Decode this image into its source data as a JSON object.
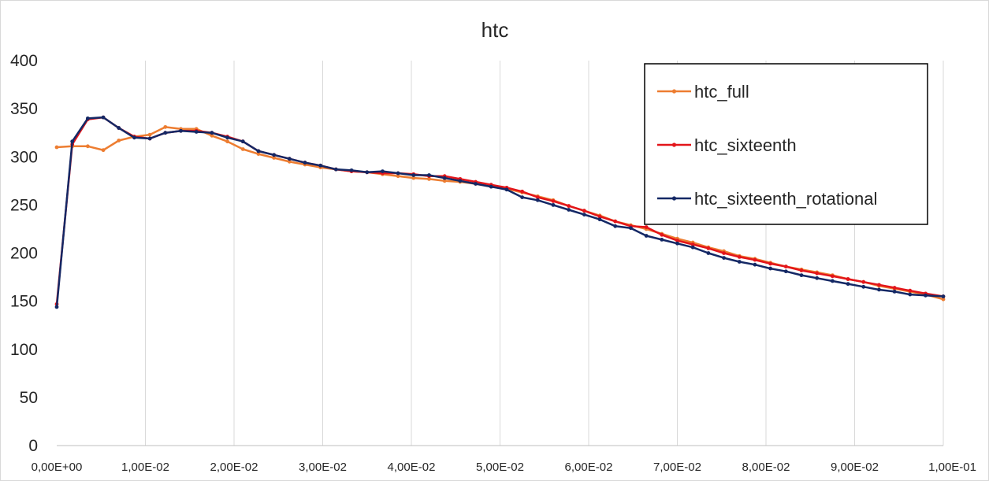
{
  "chart_data": {
    "type": "line",
    "title": "htc",
    "xlabel": "",
    "ylabel": "",
    "xlim": [
      0,
      0.1
    ],
    "ylim": [
      0,
      400
    ],
    "grid": "vertical",
    "legend_position": "top-right",
    "x_ticks": [
      0,
      0.01,
      0.02,
      0.03,
      0.04,
      0.05,
      0.06,
      0.07,
      0.08,
      0.09,
      0.1
    ],
    "x_tick_labels": [
      "0,00E+00",
      "1,00E-02",
      "2,00E-02",
      "3,00E-02",
      "4,00E-02",
      "5,00E-02",
      "6,00E-02",
      "7,00E-02",
      "8,00E-02",
      "9,00E-02",
      "1,00E-01"
    ],
    "y_ticks": [
      0,
      50,
      100,
      150,
      200,
      250,
      300,
      350,
      400
    ],
    "y_tick_labels": [
      "0",
      "50",
      "100",
      "150",
      "200",
      "250",
      "300",
      "350",
      "400"
    ],
    "series": [
      {
        "name": "htc_full",
        "color": "#ed7d31",
        "x": [
          0,
          0.00175,
          0.0035,
          0.00525,
          0.007,
          0.00875,
          0.0105,
          0.01225,
          0.014,
          0.01575,
          0.0175,
          0.01925,
          0.021,
          0.02275,
          0.0245,
          0.02625,
          0.028,
          0.02975,
          0.0315,
          0.03325,
          0.035,
          0.03675,
          0.0385,
          0.04025,
          0.042,
          0.04375,
          0.0455,
          0.04725,
          0.049,
          0.05075,
          0.0525,
          0.05425,
          0.056,
          0.05775,
          0.0595,
          0.06125,
          0.063,
          0.06475,
          0.0665,
          0.06825,
          0.07,
          0.07175,
          0.0735,
          0.07525,
          0.077,
          0.07875,
          0.0805,
          0.08225,
          0.084,
          0.08575,
          0.0875,
          0.08925,
          0.091,
          0.09275,
          0.0945,
          0.09625,
          0.098,
          0.1
        ],
        "y": [
          310,
          311,
          311,
          307,
          317,
          321,
          323,
          331,
          329,
          329,
          322,
          316,
          308,
          303,
          299,
          295,
          292,
          289,
          287,
          285,
          284,
          282,
          280,
          278,
          277,
          275,
          274,
          272,
          269,
          267,
          263,
          259,
          255,
          249,
          244,
          239,
          233,
          229,
          225,
          220,
          215,
          211,
          206,
          202,
          197,
          194,
          190,
          186,
          183,
          180,
          177,
          173,
          170,
          166,
          163,
          160,
          157,
          152
        ]
      },
      {
        "name": "htc_sixteenth",
        "color": "#e3151a",
        "x": [
          0,
          0.00175,
          0.0035,
          0.00525,
          0.007,
          0.00875,
          0.0105,
          0.01225,
          0.014,
          0.01575,
          0.0175,
          0.01925,
          0.021,
          0.02275,
          0.0245,
          0.02625,
          0.028,
          0.02975,
          0.0315,
          0.03325,
          0.035,
          0.03675,
          0.0385,
          0.04025,
          0.042,
          0.04375,
          0.0455,
          0.04725,
          0.049,
          0.05075,
          0.0525,
          0.05425,
          0.056,
          0.05775,
          0.0595,
          0.06125,
          0.063,
          0.06475,
          0.0665,
          0.06825,
          0.07,
          0.07175,
          0.0735,
          0.07525,
          0.077,
          0.07875,
          0.0805,
          0.08225,
          0.084,
          0.08575,
          0.0875,
          0.08925,
          0.091,
          0.09275,
          0.0945,
          0.09625,
          0.098,
          0.1
        ],
        "y": [
          147,
          313,
          339,
          341,
          330,
          321,
          319,
          325,
          327,
          327,
          325,
          321,
          316,
          306,
          302,
          298,
          294,
          291,
          287,
          285,
          284,
          283,
          283,
          282,
          280,
          280,
          277,
          274,
          271,
          268,
          264,
          258,
          254,
          249,
          244,
          238,
          233,
          228,
          227,
          219,
          213,
          209,
          205,
          200,
          196,
          193,
          189,
          186,
          182,
          179,
          176,
          173,
          170,
          167,
          164,
          161,
          158,
          155
        ]
      },
      {
        "name": "htc_sixteenth_rotational",
        "color": "#142865",
        "x": [
          0,
          0.00175,
          0.0035,
          0.00525,
          0.007,
          0.00875,
          0.0105,
          0.01225,
          0.014,
          0.01575,
          0.0175,
          0.01925,
          0.021,
          0.02275,
          0.0245,
          0.02625,
          0.028,
          0.02975,
          0.0315,
          0.03325,
          0.035,
          0.03675,
          0.0385,
          0.04025,
          0.042,
          0.04375,
          0.0455,
          0.04725,
          0.049,
          0.05075,
          0.0525,
          0.05425,
          0.056,
          0.05775,
          0.0595,
          0.06125,
          0.063,
          0.06475,
          0.0665,
          0.06825,
          0.07,
          0.07175,
          0.0735,
          0.07525,
          0.077,
          0.07875,
          0.0805,
          0.08225,
          0.084,
          0.08575,
          0.0875,
          0.08925,
          0.091,
          0.09275,
          0.0945,
          0.09625,
          0.098,
          0.1
        ],
        "y": [
          144,
          316,
          340,
          341,
          330,
          320,
          319,
          325,
          327,
          326,
          325,
          320,
          316,
          306,
          302,
          298,
          294,
          291,
          287,
          286,
          284,
          285,
          283,
          281,
          281,
          278,
          275,
          272,
          269,
          266,
          258,
          255,
          250,
          245,
          240,
          235,
          228,
          226,
          218,
          214,
          210,
          206,
          200,
          195,
          191,
          188,
          184,
          181,
          177,
          174,
          171,
          168,
          165,
          162,
          160,
          157,
          156,
          155
        ]
      }
    ]
  }
}
